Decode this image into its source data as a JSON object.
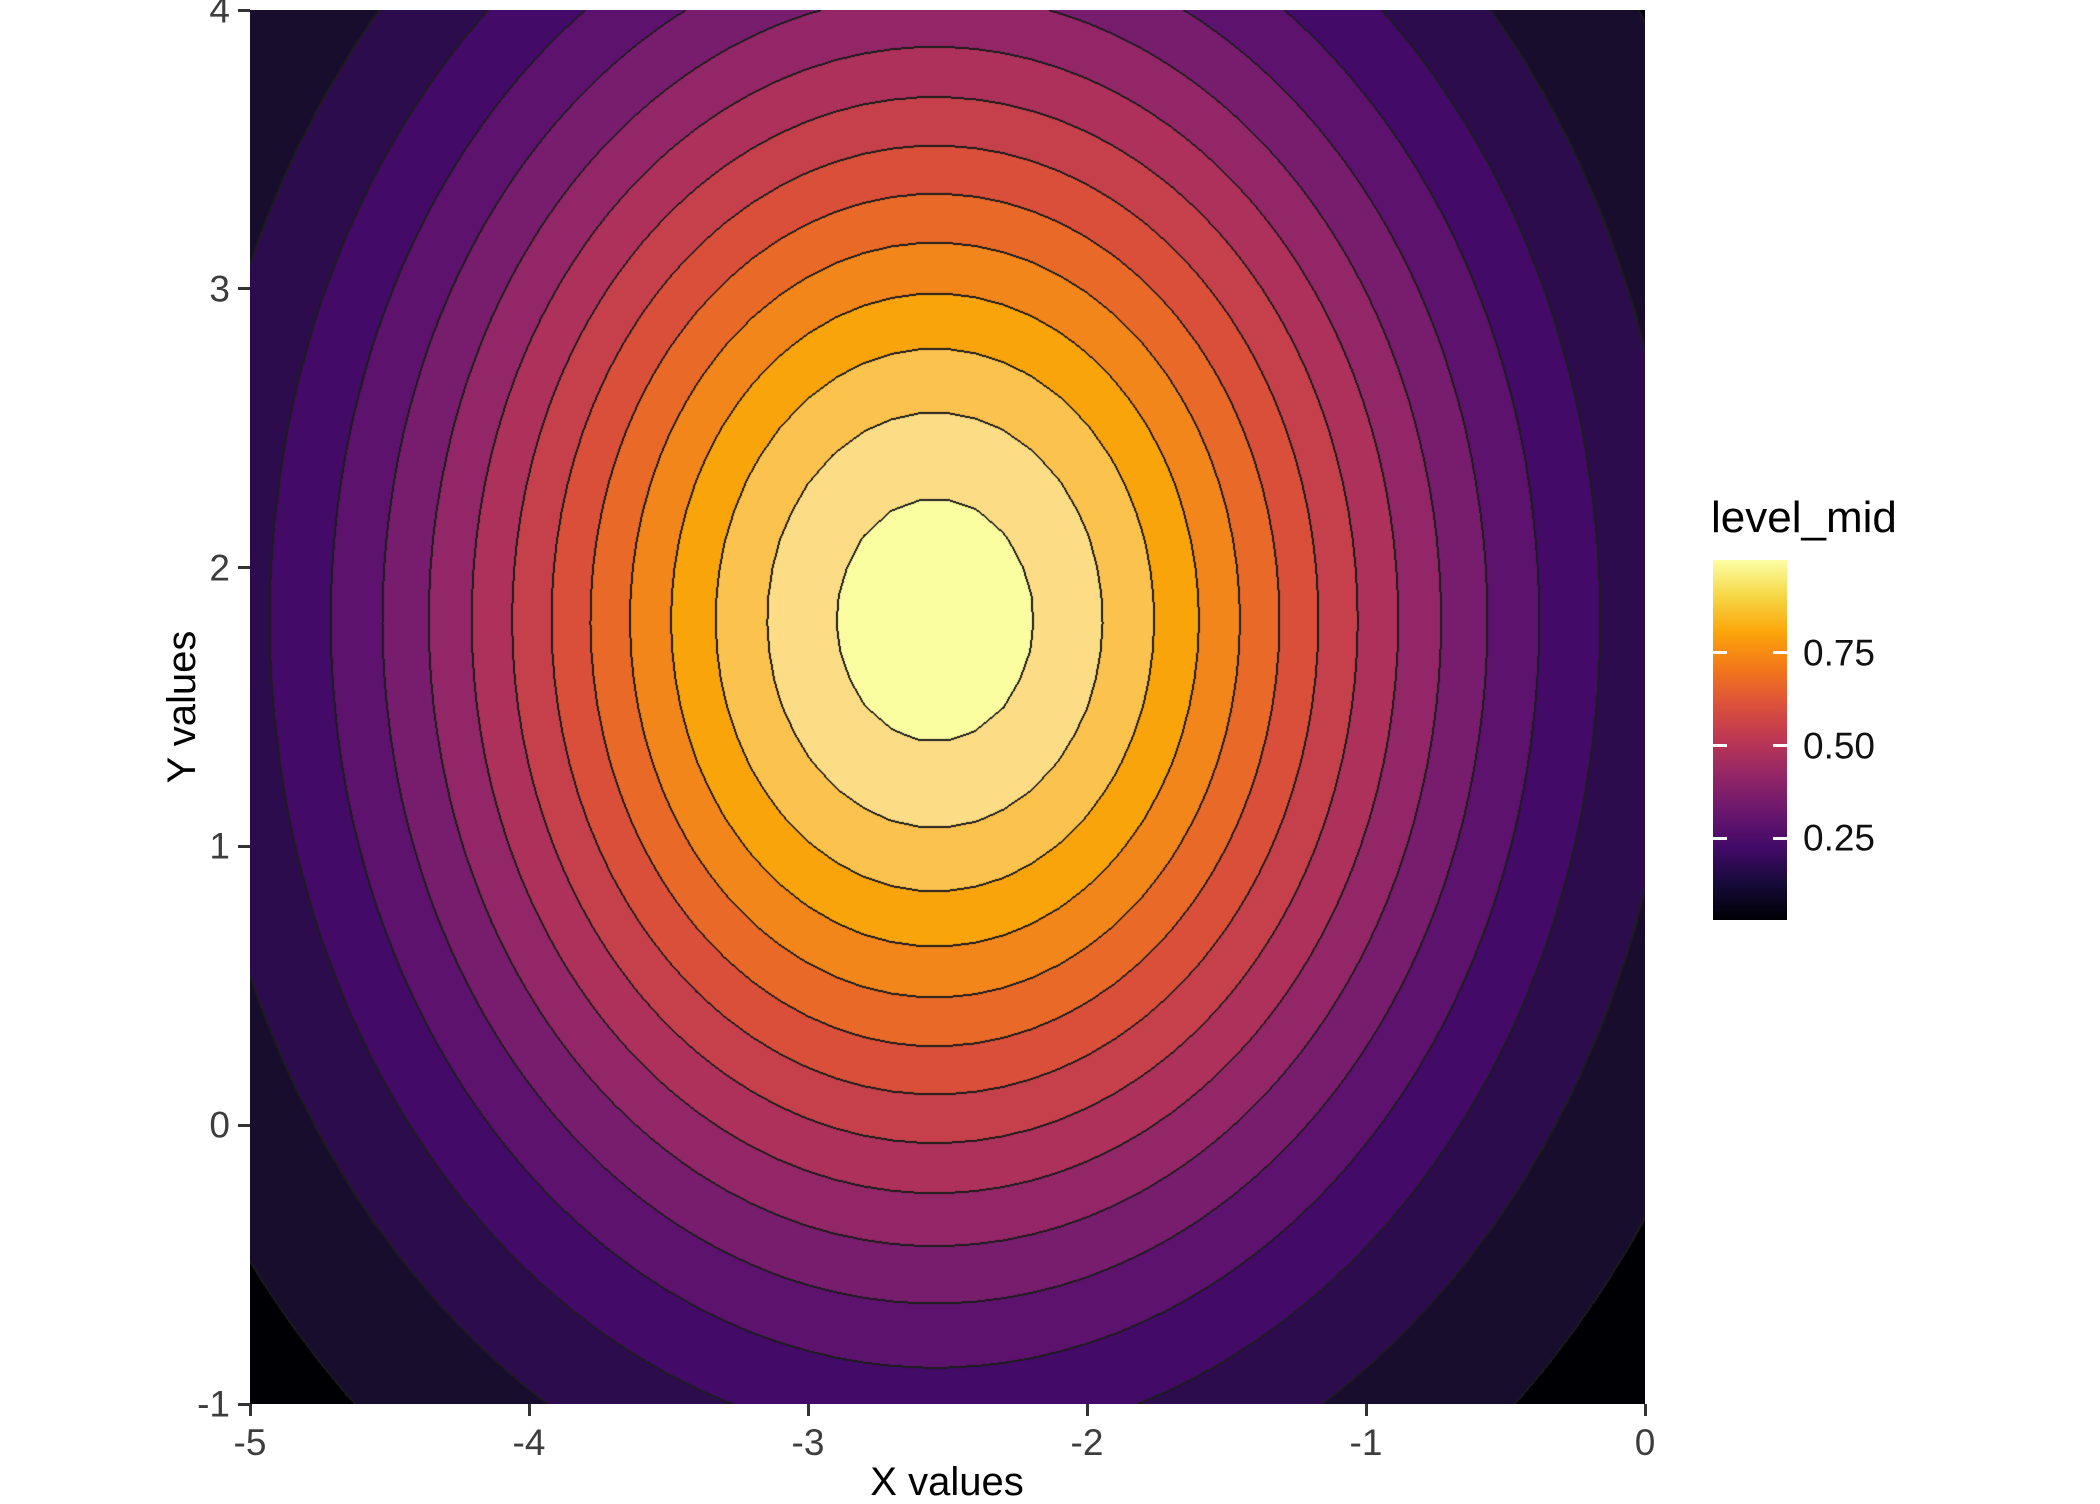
{
  "chart_data": {
    "type": "filled_contour",
    "title": "",
    "xlabel": "X values",
    "ylabel": "Y values",
    "x_range": [
      -5,
      0
    ],
    "y_range": [
      -1,
      4
    ],
    "x_ticks": [
      -5,
      -4,
      -3,
      -2,
      -1,
      0
    ],
    "y_ticks": [
      4,
      3,
      2,
      1,
      0,
      -1
    ],
    "colormap": "inferno",
    "surface": {
      "model": "gaussian",
      "amplitude": 0.972,
      "center": [
        -2.545,
        1.812
      ],
      "sigma_x": 1.314,
      "sigma_y": 1.627,
      "grid_step": 0.1
    },
    "levels": {
      "step": 0.0625,
      "count": 16
    },
    "band_colors": [
      "#000004",
      "#190d2e",
      "#2d0c4e",
      "#430a68",
      "#5d126e",
      "#781c6d",
      "#932667",
      "#ad315b",
      "#c6404b",
      "#da4f3a",
      "#e96a28",
      "#f3861a",
      "#faa40b",
      "#fcc24e",
      "#fcdc85",
      "#fbfda1"
    ],
    "contour_line_color": "#1c1c1c",
    "legend": {
      "title": "level_mid",
      "range": [
        0.03,
        1.0
      ],
      "ticks": [
        {
          "value": 0.75,
          "label": "0.75"
        },
        {
          "value": 0.5,
          "label": "0.50"
        },
        {
          "value": 0.25,
          "label": "0.25"
        }
      ],
      "gradient_bottom_to_top": [
        "#000004",
        "#160b39",
        "#420a68",
        "#6a176e",
        "#932667",
        "#bc3754",
        "#dd513a",
        "#f37819",
        "#fca50a",
        "#f6d746",
        "#fcffa4"
      ]
    },
    "style": {
      "background": "#ffffff",
      "axis_text_color": "#3d3d3d",
      "axis_title_color": "#000000",
      "tick_mark_color": "#333333"
    }
  }
}
